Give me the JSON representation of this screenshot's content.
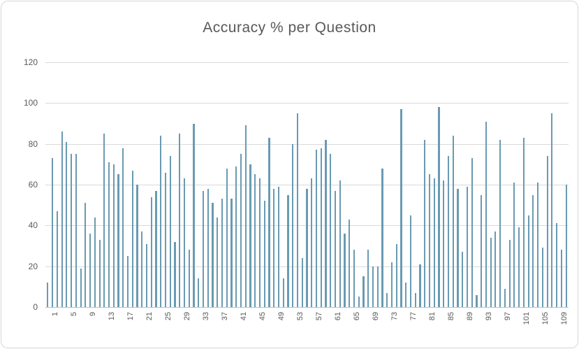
{
  "chart_title": "Accuracy % per Question",
  "chart_data": {
    "type": "bar",
    "title": "Accuracy % per Question",
    "xlabel": "",
    "ylabel": "",
    "ylim": [
      0,
      120
    ],
    "yticks": [
      0,
      20,
      40,
      60,
      80,
      100,
      120
    ],
    "x_tick_labels": [
      "1",
      "5",
      "9",
      "13",
      "17",
      "21",
      "25",
      "29",
      "33",
      "37",
      "41",
      "45",
      "49",
      "53",
      "57",
      "61",
      "65",
      "69",
      "73",
      "77",
      "81",
      "85",
      "89",
      "93",
      "97",
      "101",
      "105",
      "109"
    ],
    "x_tick_step": 4,
    "grid": true,
    "legend": false,
    "categories_note": "questions numbered 1..111",
    "values": [
      12,
      73,
      47,
      86,
      81,
      75,
      75,
      19,
      51,
      36,
      44,
      33,
      85,
      71,
      70,
      65,
      78,
      25,
      67,
      60,
      37,
      31,
      54,
      57,
      84,
      66,
      74,
      32,
      85,
      63,
      28,
      90,
      14,
      57,
      58,
      51,
      44,
      53,
      68,
      53,
      69,
      75,
      89,
      70,
      65,
      63,
      52,
      83,
      58,
      59,
      14,
      55,
      80,
      95,
      24,
      58,
      63,
      77,
      78,
      82,
      75,
      57,
      62,
      36,
      43,
      28,
      5,
      15,
      28,
      20,
      20,
      68,
      7,
      22,
      31,
      97,
      12,
      45,
      7,
      21,
      82,
      65,
      63,
      98,
      62,
      74,
      84,
      58,
      27,
      59,
      73,
      6,
      55,
      91,
      34,
      37,
      82,
      9,
      33,
      61,
      39,
      83,
      45,
      55,
      61,
      29,
      74,
      95,
      41,
      28,
      60
    ]
  },
  "style": {
    "bar_color": "#6a9ab2",
    "grid_color": "#d9d9d9",
    "axis_color": "#bfbfbf",
    "text_color": "#595959",
    "border_color": "#d4d7d9",
    "background": "#ffffff"
  }
}
